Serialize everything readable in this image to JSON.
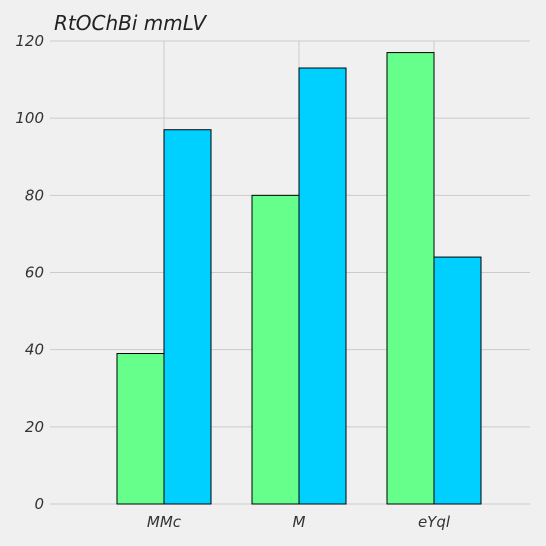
{
  "chart_data": {
    "type": "bar",
    "title": "RtOChBi mmLV",
    "xlabel": "",
    "ylabel": "",
    "categories": [
      "MMc",
      "M",
      "eYql"
    ],
    "series": [
      {
        "values": [
          39,
          80,
          117
        ]
      },
      {
        "values": [
          97,
          113,
          64
        ]
      }
    ],
    "ylim": [
      0,
      120
    ],
    "yticks": [
      0,
      20,
      40,
      60,
      80,
      100,
      120
    ],
    "grid": true,
    "legend": "none",
    "colors": [
      "#66ff8c",
      "#00d0ff"
    ],
    "background": "#f0f0f0"
  }
}
